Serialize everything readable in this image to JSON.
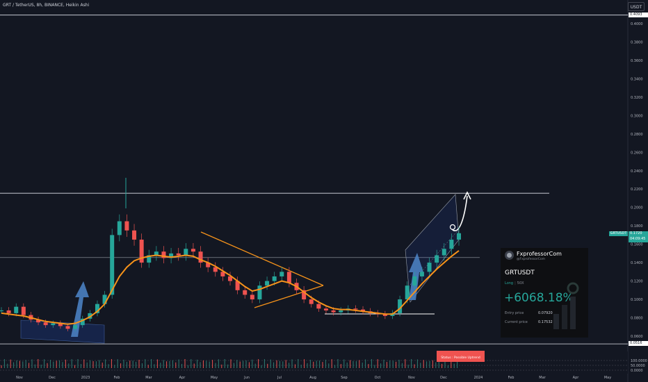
{
  "header": {
    "symbol_line": "GRT / TetherUS, 8h, BINANCE, Heikin Ashi",
    "currency_button": "USDT"
  },
  "price_axis": {
    "labels": [
      "0.4000",
      "0.3800",
      "0.3600",
      "0.3400",
      "0.3200",
      "0.3000",
      "0.2800",
      "0.2600",
      "0.2400",
      "0.2200",
      "0.2000",
      "0.1800",
      "0.1600",
      "0.1400",
      "0.1200",
      "0.1000",
      "0.0800",
      "0.0600"
    ],
    "top_level": "0.4093",
    "bottom_level": "0.0516",
    "last_price": "0.1720",
    "countdown": "04:09:45",
    "symbol_badge": "GRTUSDT"
  },
  "time_axis": {
    "labels": [
      "Nov",
      "Dec",
      "2023",
      "Feb",
      "Mar",
      "Apr",
      "May",
      "Jun",
      "Jul",
      "Aug",
      "Sep",
      "Oct",
      "Nov",
      "Dec",
      "2024",
      "Feb",
      "Mar",
      "Apr",
      "May"
    ]
  },
  "oscillator": {
    "levels": [
      "100.0000",
      "50.0000",
      "0.0000"
    ],
    "status_text": "Status :  Possible Uptrend"
  },
  "trade_card": {
    "brand": "FxprofessorCom",
    "handle": "@FxprofessorCom",
    "pair": "GRTUSDT",
    "side": "Long",
    "leverage": "50X",
    "pnl_percent": "+6068.18%",
    "entry_label": "Entry price",
    "entry_value": "0.07920",
    "current_label": "Current price",
    "current_value": "0.17532"
  },
  "colors": {
    "background": "#131722",
    "bull": "#26a69a",
    "bear": "#ef5350",
    "ma": "#f7931a",
    "arrow_blue": "#4a7fc1"
  },
  "chart_data": {
    "type": "candlestick",
    "series": [
      {
        "name": "GRTUSDT",
        "values": [
          0.088,
          0.085,
          0.092,
          0.083,
          0.078,
          0.075,
          0.072,
          0.074,
          0.071,
          0.068,
          0.072,
          0.079,
          0.085,
          0.095,
          0.105,
          0.17,
          0.185,
          0.175,
          0.165,
          0.14,
          0.148,
          0.152,
          0.145,
          0.15,
          0.148,
          0.155,
          0.152,
          0.14,
          0.135,
          0.13,
          0.125,
          0.12,
          0.11,
          0.105,
          0.1,
          0.115,
          0.12,
          0.125,
          0.13,
          0.118,
          0.11,
          0.1,
          0.095,
          0.09,
          0.088,
          0.086,
          0.088,
          0.09,
          0.089,
          0.087,
          0.085,
          0.084,
          0.082,
          0.085,
          0.1,
          0.115,
          0.125,
          0.13,
          0.14,
          0.148,
          0.155,
          0.165,
          0.172
        ]
      }
    ],
    "ma_series": [
      0.085,
      0.084,
      0.083,
      0.082,
      0.08,
      0.078,
      0.076,
      0.075,
      0.074,
      0.073,
      0.074,
      0.077,
      0.081,
      0.087,
      0.095,
      0.11,
      0.125,
      0.135,
      0.142,
      0.145,
      0.147,
      0.148,
      0.147,
      0.146,
      0.147,
      0.148,
      0.147,
      0.143,
      0.14,
      0.136,
      0.131,
      0.126,
      0.12,
      0.114,
      0.109,
      0.111,
      0.114,
      0.117,
      0.12,
      0.118,
      0.114,
      0.108,
      0.102,
      0.097,
      0.093,
      0.09,
      0.089,
      0.089,
      0.088,
      0.087,
      0.086,
      0.085,
      0.084,
      0.084,
      0.09,
      0.099,
      0.108,
      0.117,
      0.125,
      0.133,
      0.14,
      0.147,
      0.153
    ],
    "ylim": [
      0.05,
      0.41
    ],
    "horizontal_levels": [
      0.4093,
      0.2155,
      0.1455,
      0.0855,
      0.0516
    ]
  }
}
